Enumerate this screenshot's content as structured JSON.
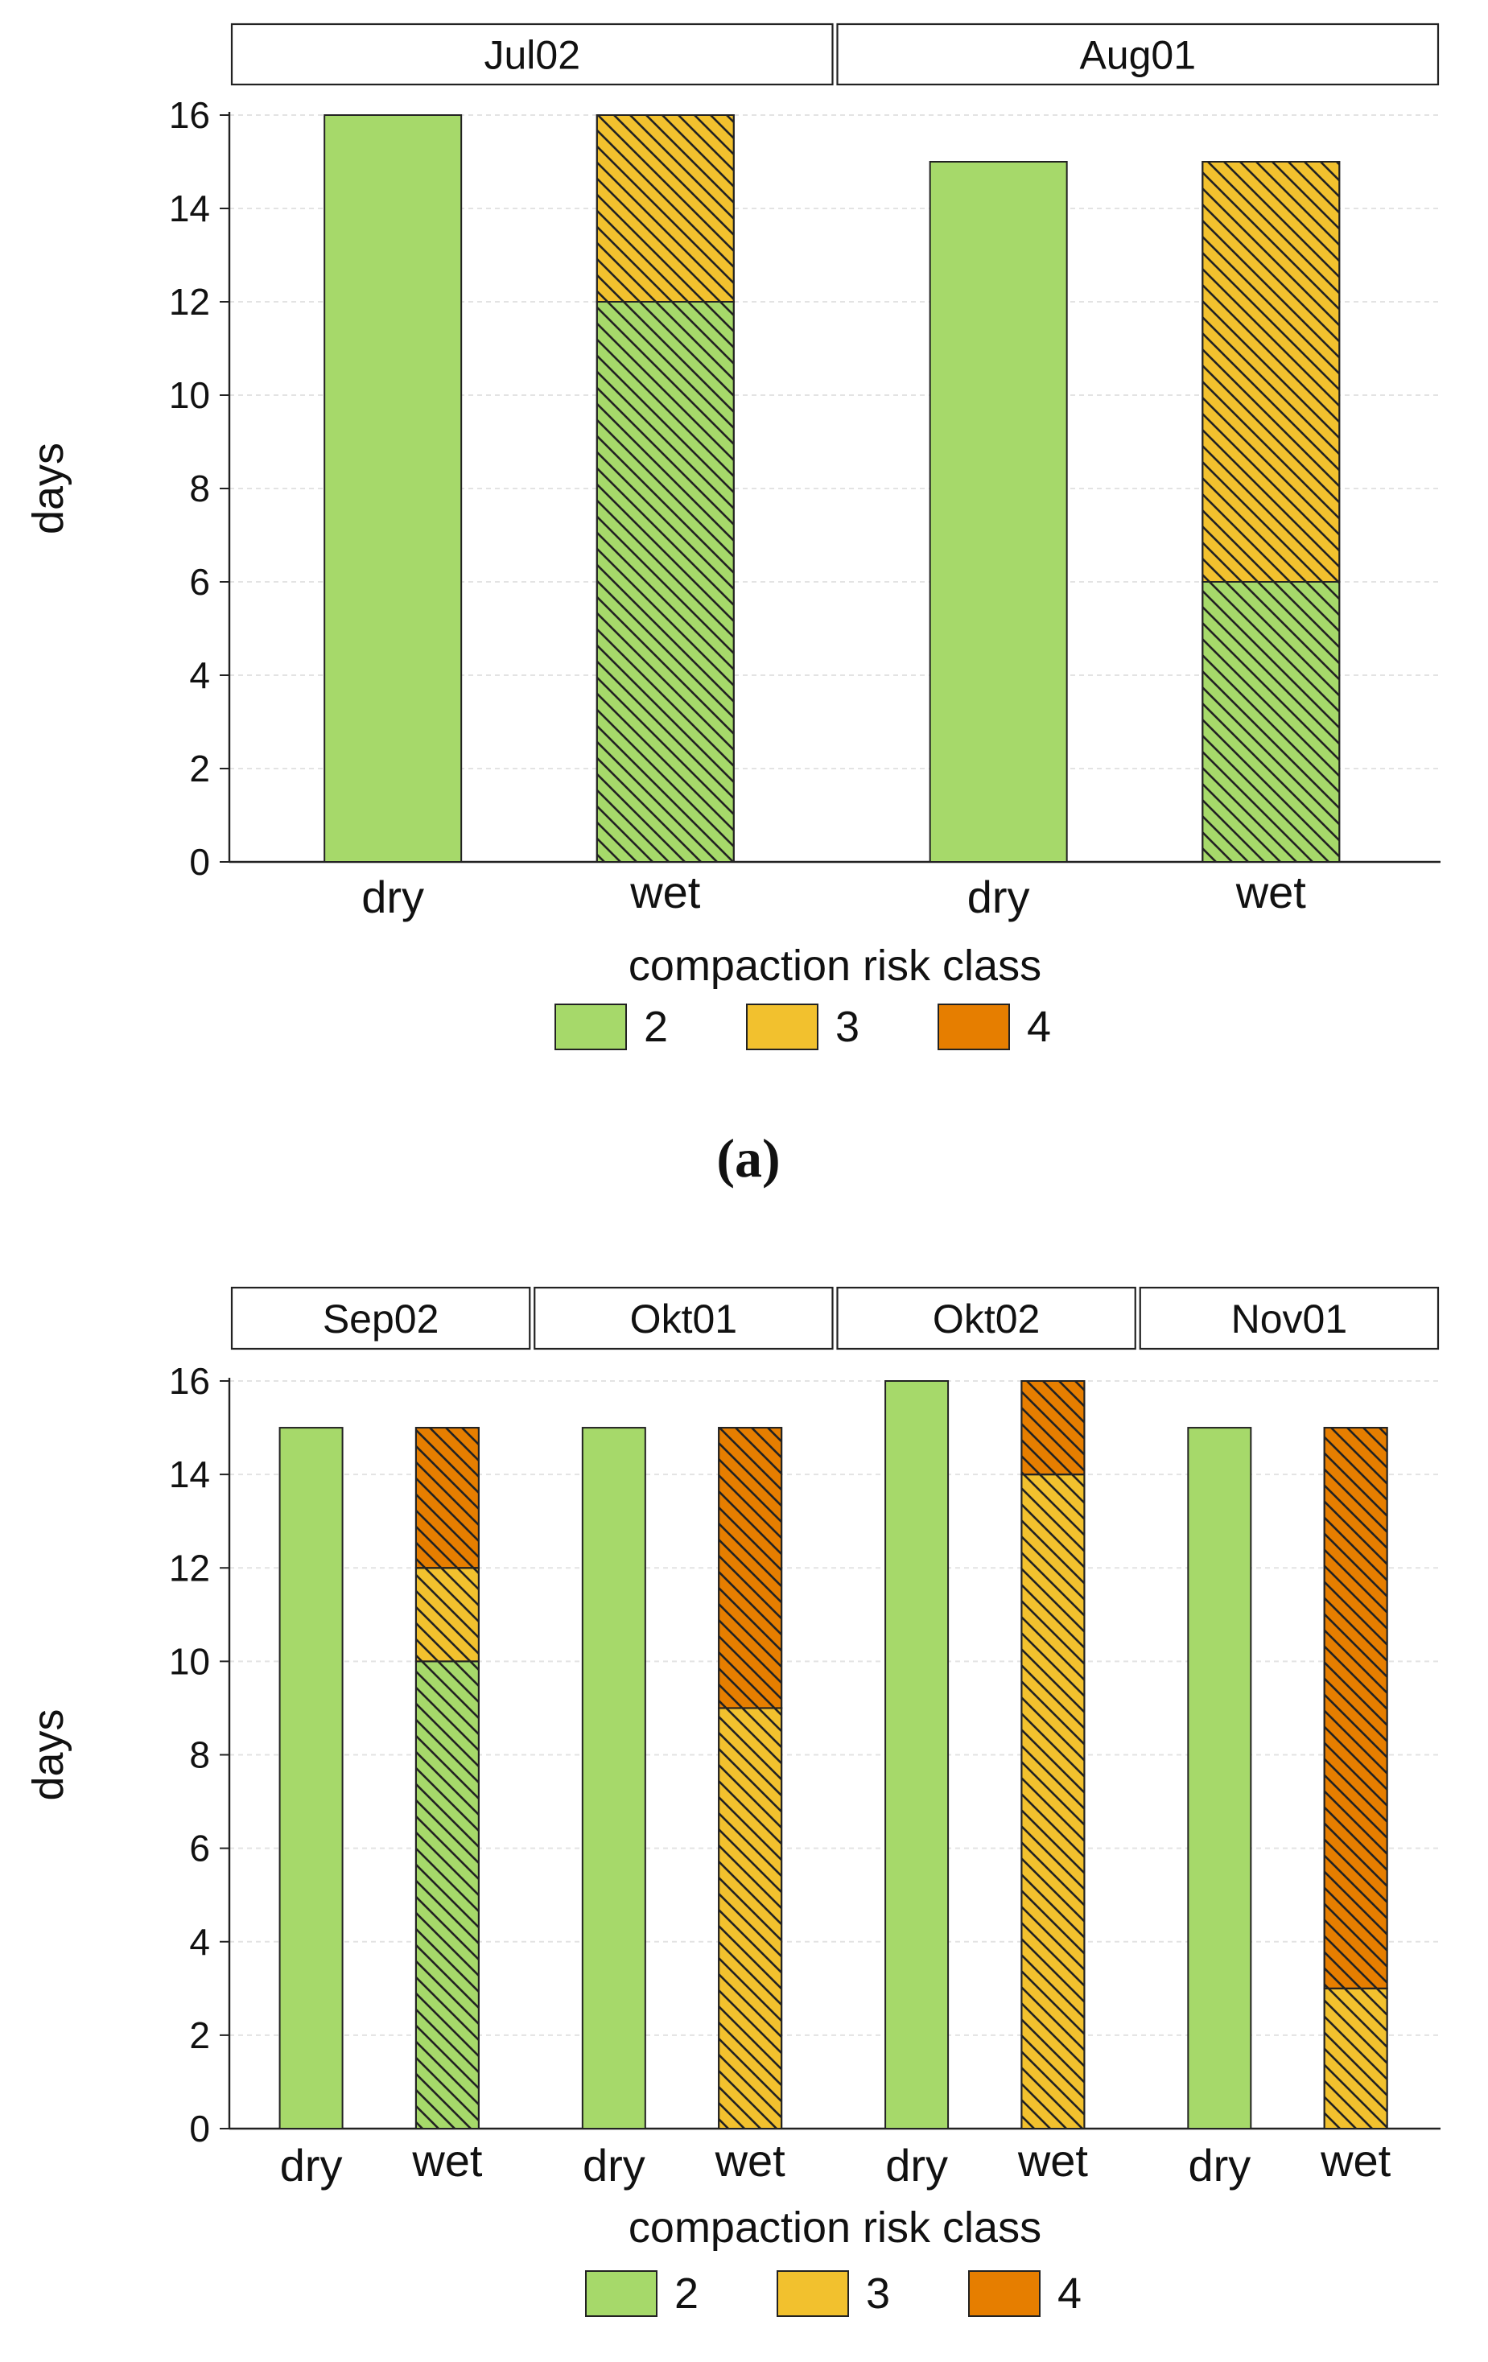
{
  "figure": {
    "panel_a_label": "(a)"
  },
  "legend": {
    "entries": [
      {
        "label": "2",
        "color": "#a6d96a"
      },
      {
        "label": "3",
        "color": "#f2c12e"
      },
      {
        "label": "4",
        "color": "#e67e00"
      }
    ]
  },
  "colors": {
    "class2": "#a6d96a",
    "class3": "#f2c12e",
    "class4": "#e67e00",
    "strip_fill": "#ffffff",
    "grid": "#e3e3e3",
    "outline": "#222222",
    "hatch": "#222222"
  },
  "chart_data": [
    {
      "type": "bar",
      "stacked": true,
      "ylabel": "days",
      "xlabel": "compaction risk class",
      "ylim": [
        0,
        16
      ],
      "yticks": [
        0,
        2,
        4,
        6,
        8,
        10,
        12,
        14,
        16
      ],
      "categories": [
        "dry",
        "wet"
      ],
      "legend_title": "",
      "hatched_categories": [
        "wet"
      ],
      "facets": [
        {
          "name": "Jul02",
          "bars": [
            {
              "category": "dry",
              "segments": [
                {
                  "cls": "2",
                  "value": 16
                }
              ]
            },
            {
              "category": "wet",
              "segments": [
                {
                  "cls": "2",
                  "value": 12
                },
                {
                  "cls": "3",
                  "value": 4
                }
              ]
            }
          ]
        },
        {
          "name": "Aug01",
          "bars": [
            {
              "category": "dry",
              "segments": [
                {
                  "cls": "2",
                  "value": 15
                }
              ]
            },
            {
              "category": "wet",
              "segments": [
                {
                  "cls": "2",
                  "value": 6
                },
                {
                  "cls": "3",
                  "value": 9
                }
              ]
            }
          ]
        }
      ]
    },
    {
      "type": "bar",
      "stacked": true,
      "ylabel": "days",
      "xlabel": "compaction risk class",
      "ylim": [
        0,
        16
      ],
      "yticks": [
        0,
        2,
        4,
        6,
        8,
        10,
        12,
        14,
        16
      ],
      "categories": [
        "dry",
        "wet"
      ],
      "hatched_categories": [
        "wet"
      ],
      "facets": [
        {
          "name": "Sep02",
          "bars": [
            {
              "category": "dry",
              "segments": [
                {
                  "cls": "2",
                  "value": 15
                }
              ]
            },
            {
              "category": "wet",
              "segments": [
                {
                  "cls": "2",
                  "value": 10
                },
                {
                  "cls": "3",
                  "value": 2
                },
                {
                  "cls": "4",
                  "value": 3
                }
              ]
            }
          ]
        },
        {
          "name": "Okt01",
          "bars": [
            {
              "category": "dry",
              "segments": [
                {
                  "cls": "2",
                  "value": 15
                }
              ]
            },
            {
              "category": "wet",
              "segments": [
                {
                  "cls": "3",
                  "value": 9
                },
                {
                  "cls": "4",
                  "value": 6
                }
              ]
            }
          ]
        },
        {
          "name": "Okt02",
          "bars": [
            {
              "category": "dry",
              "segments": [
                {
                  "cls": "2",
                  "value": 16
                }
              ]
            },
            {
              "category": "wet",
              "segments": [
                {
                  "cls": "3",
                  "value": 14
                },
                {
                  "cls": "4",
                  "value": 2
                }
              ]
            }
          ]
        },
        {
          "name": "Nov01",
          "bars": [
            {
              "category": "dry",
              "segments": [
                {
                  "cls": "2",
                  "value": 15
                }
              ]
            },
            {
              "category": "wet",
              "segments": [
                {
                  "cls": "3",
                  "value": 3
                },
                {
                  "cls": "4",
                  "value": 12
                }
              ]
            }
          ]
        }
      ]
    }
  ]
}
